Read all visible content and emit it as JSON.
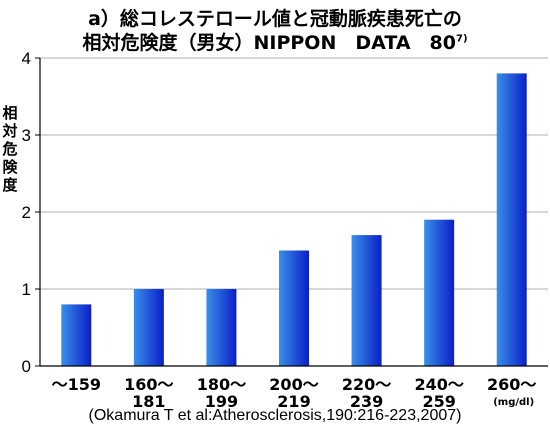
{
  "title_line1": "a）総コレステロール値と冠動脈疾患死亡の",
  "title_line2": "相対危険度（男女）NIPPON　DATA　80",
  "title_ref": "7)",
  "citation": "(Okamura T et al:Atherosclerosis,190:216-223,2007)",
  "colors": {
    "bar_light": "#3a8fe8",
    "bar_dark": "#0a1fc8",
    "axis": "#000000",
    "grid": "#999999"
  },
  "chart_data": {
    "type": "bar",
    "title": "a）総コレステロール値と冠動脈疾患死亡の 相対危険度（男女）NIPPON　DATA　80",
    "ylabel": "相対危険度",
    "xlabel": "",
    "unit": "(mg/dl)",
    "ylim": [
      0,
      4
    ],
    "yticks": [
      "0",
      "1",
      "2",
      "3",
      "4"
    ],
    "grid": true,
    "categories": [
      [
        "〜159"
      ],
      [
        "160〜",
        "181"
      ],
      [
        "180〜",
        "199"
      ],
      [
        "200〜",
        "219"
      ],
      [
        "220〜",
        "239"
      ],
      [
        "240〜",
        "259"
      ],
      [
        "260〜"
      ]
    ],
    "values": [
      0.8,
      1.0,
      1.0,
      1.5,
      1.7,
      1.9,
      3.8
    ]
  }
}
